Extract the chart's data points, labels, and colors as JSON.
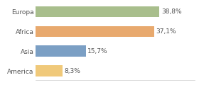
{
  "categories": [
    "America",
    "Asia",
    "Africa",
    "Europa"
  ],
  "values": [
    8.3,
    15.7,
    37.1,
    38.8
  ],
  "bar_colors": [
    "#f0c97a",
    "#7b9fc4",
    "#e8a96e",
    "#a8be8c"
  ],
  "labels": [
    "8,3%",
    "15,7%",
    "37,1%",
    "38,8%"
  ],
  "xlim": [
    0,
    50
  ],
  "background_color": "#ffffff",
  "bar_height": 0.55,
  "label_fontsize": 6.5,
  "category_fontsize": 6.5
}
